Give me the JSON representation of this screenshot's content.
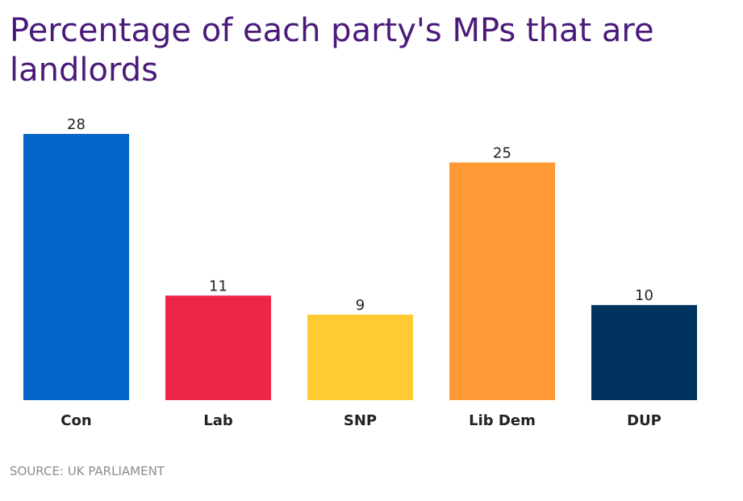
{
  "chart_data": {
    "type": "bar",
    "title": "Percentage of each party's MPs that are landlords",
    "categories": [
      "Con",
      "Lab",
      "SNP",
      "Lib Dem",
      "DUP"
    ],
    "values": [
      28,
      11,
      9,
      25,
      10
    ],
    "colors": [
      "#0565cb",
      "#ee2549",
      "#ffcb33",
      "#fe9935",
      "#00335f"
    ],
    "xlabel": "",
    "ylabel": "",
    "ylim": [
      0,
      28
    ],
    "grid": false,
    "source": "SOURCE: UK PARLIAMENT"
  }
}
